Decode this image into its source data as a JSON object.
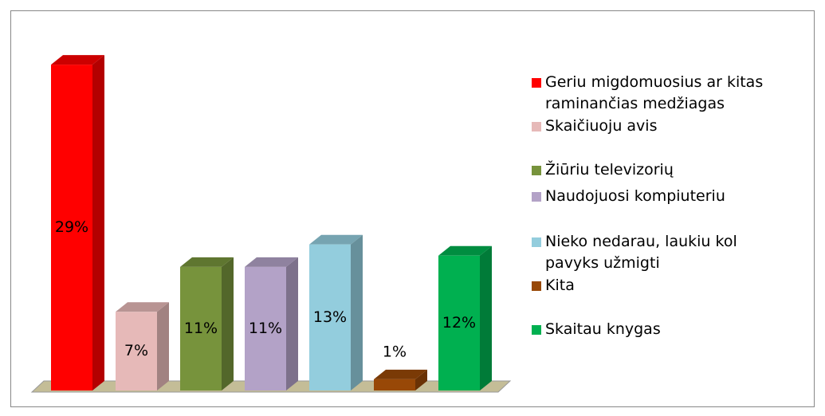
{
  "chart_data": {
    "type": "bar",
    "series": [
      {
        "name": "Geriu migdomuosius ar kitas raminančias medžiagas",
        "color": "#ff0000",
        "values": [
          29
        ],
        "value_labels": [
          "29%"
        ]
      },
      {
        "name": "Skaičiuoju avis",
        "color": "#e6b9b8",
        "values": [
          7
        ],
        "value_labels": [
          "7%"
        ]
      },
      {
        "name": "Žiūriu televizorių",
        "color": "#77933c",
        "values": [
          11
        ],
        "value_labels": [
          "11%"
        ]
      },
      {
        "name": "Naudojuosi kompiuteriu",
        "color": "#b3a2c7",
        "values": [
          11
        ],
        "value_labels": [
          "11%"
        ]
      },
      {
        "name": "Nieko nedarau, laukiu kol pavyks užmigti",
        "color": "#93cddd",
        "values": [
          13
        ],
        "value_labels": [
          "13%"
        ]
      },
      {
        "name": "Kita",
        "color": "#984807",
        "values": [
          1
        ],
        "value_labels": [
          "1%"
        ]
      },
      {
        "name": "Skaitau knygas",
        "color": "#00b050",
        "values": [
          12
        ],
        "value_labels": [
          "12%"
        ]
      }
    ],
    "legend": "right"
  }
}
